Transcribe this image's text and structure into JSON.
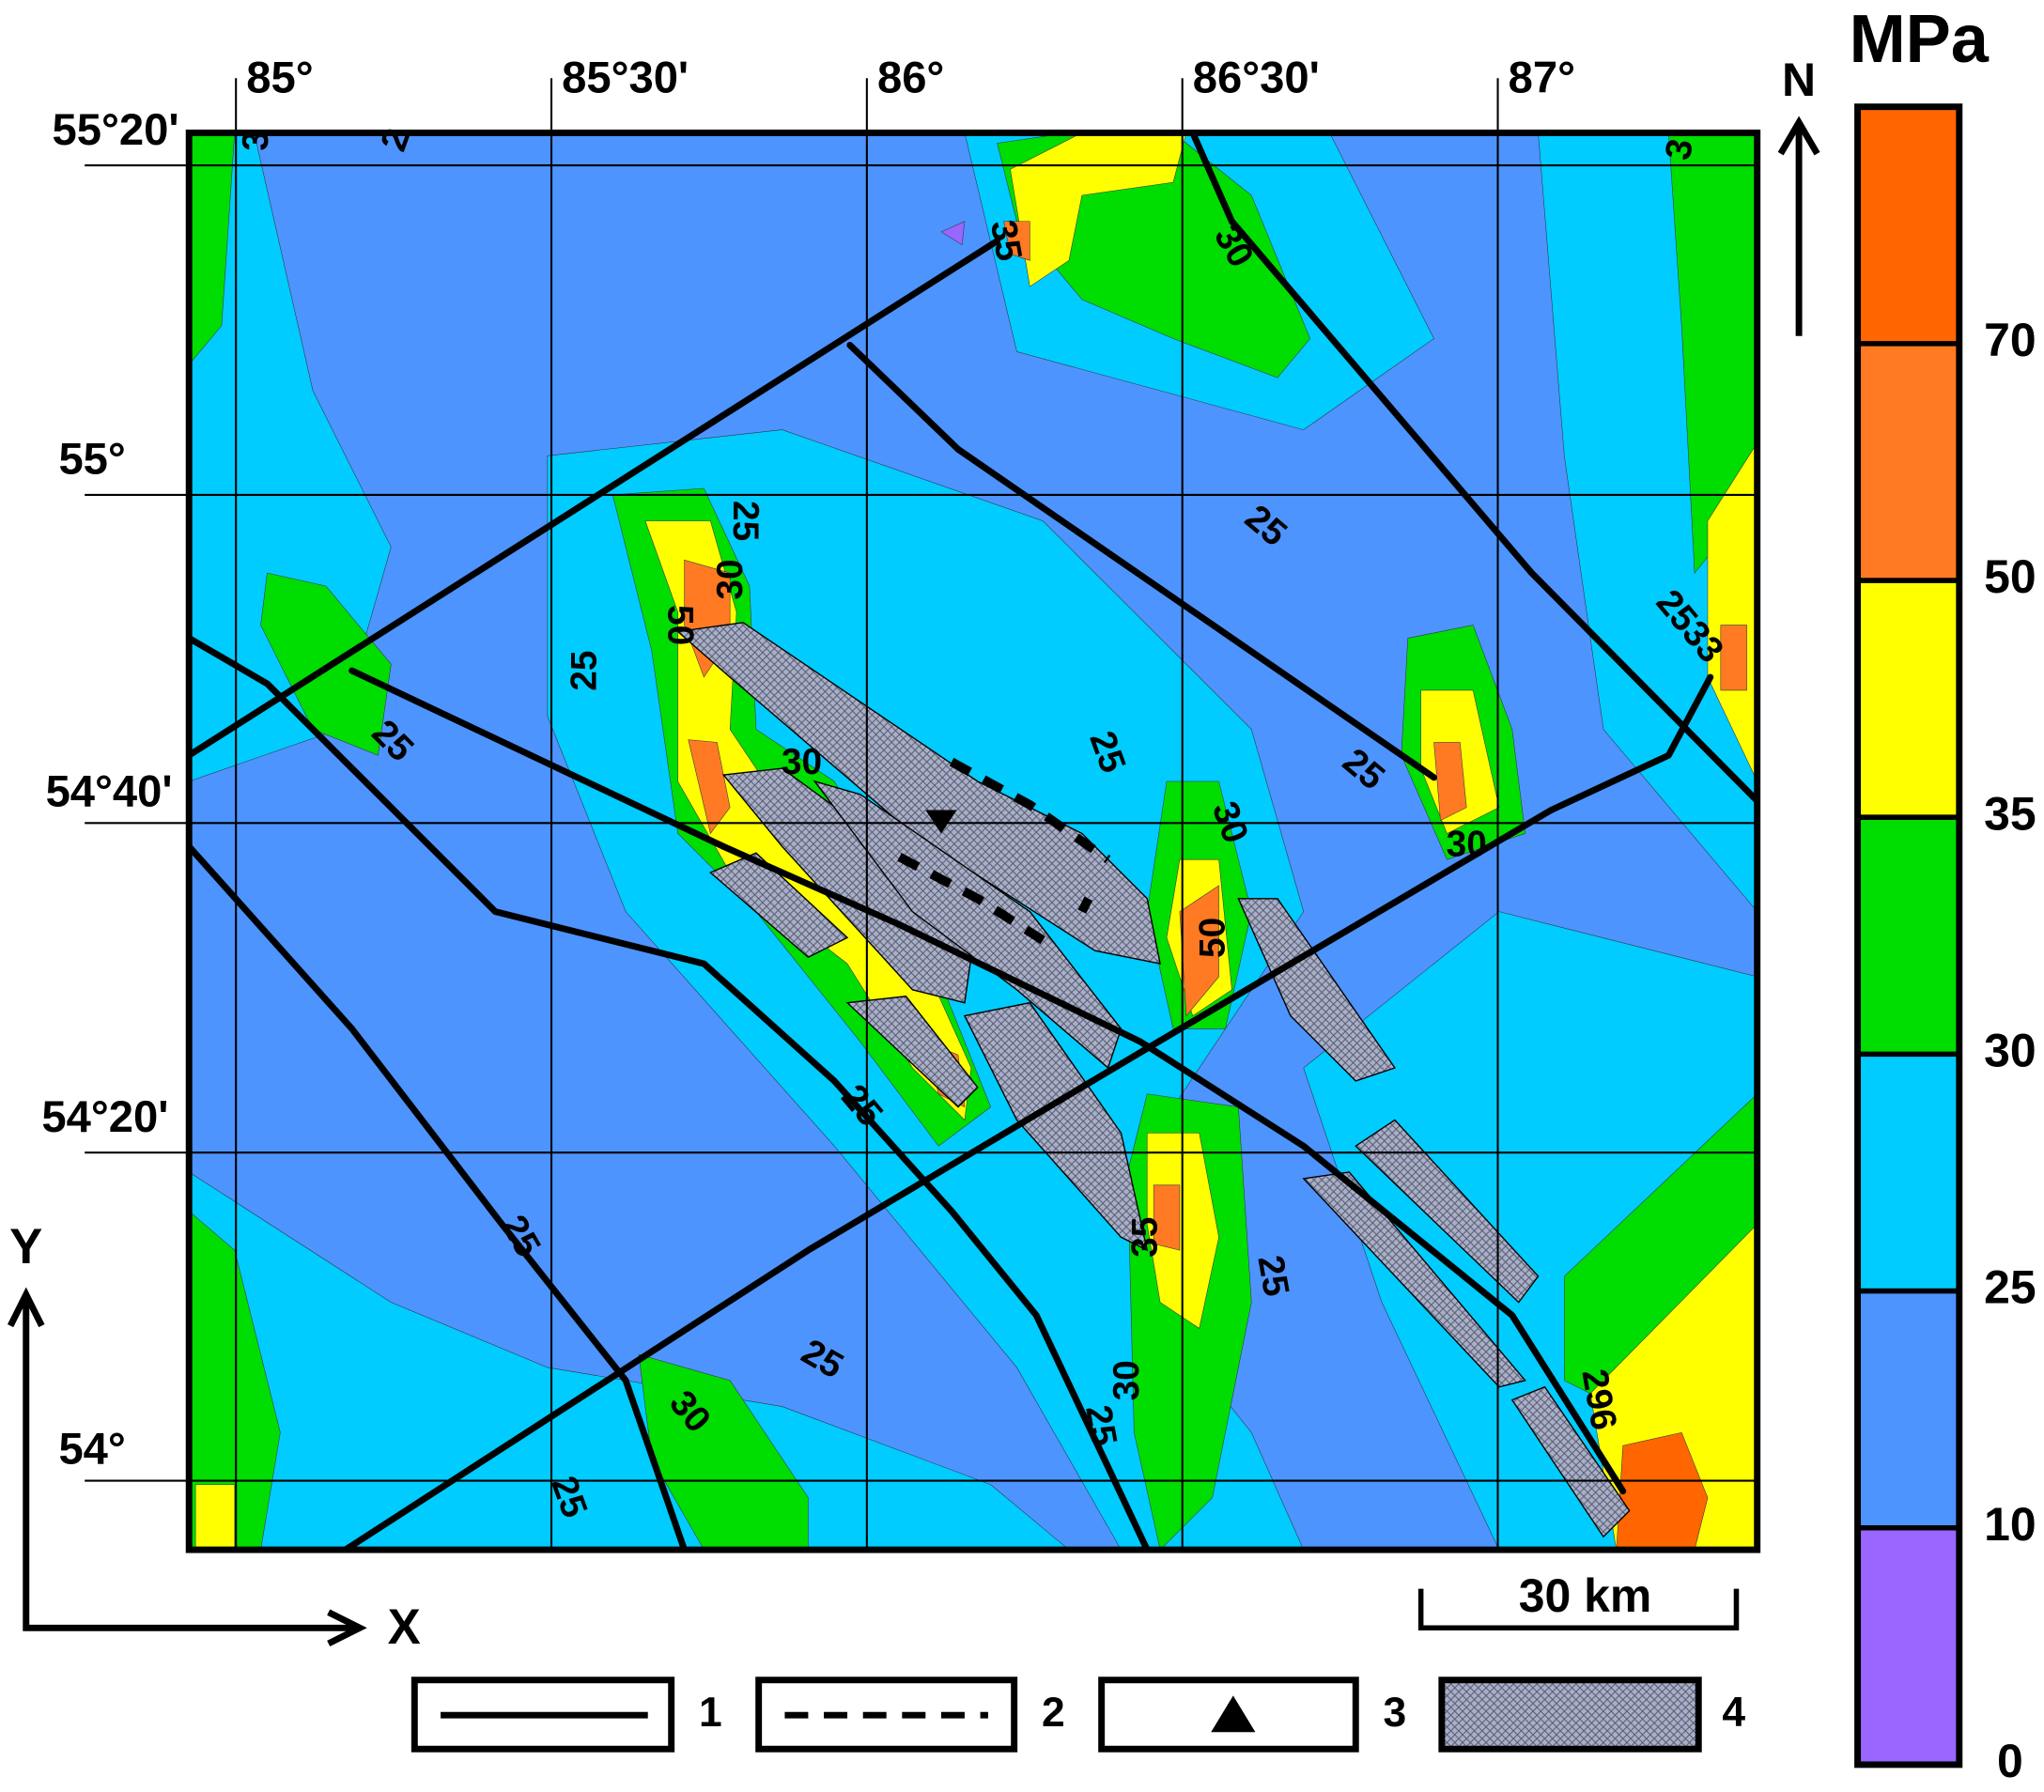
{
  "map": {
    "longitude_labels": [
      "85°",
      "85°30'",
      "86°",
      "86°30'",
      "87°"
    ],
    "latitude_labels": [
      "55°20'",
      "55°",
      "54°40'",
      "54°20'",
      "54°"
    ],
    "contour_labels": [
      "3",
      "2",
      "35",
      "30",
      "3",
      "25",
      "30",
      "50",
      "25",
      "25",
      "25",
      "25",
      "30",
      "25",
      "30",
      "2533",
      "30",
      "50",
      "25",
      "35",
      "25",
      "25",
      "25",
      "30",
      "30",
      "25",
      "25",
      "296"
    ]
  },
  "colorbar": {
    "title": "MPa",
    "ticks": [
      0,
      10,
      25,
      30,
      35,
      50,
      70
    ],
    "colors": [
      "#9966ff",
      "#4d94ff",
      "#00ccff",
      "#00dd00",
      "#ffff00",
      "#ff7a22",
      "#ff6600"
    ]
  },
  "legend": {
    "items": [
      "1",
      "2",
      "3",
      "4"
    ]
  },
  "scale_bar": "30 km",
  "north": "N",
  "axes": {
    "x": "X",
    "y": "Y"
  }
}
